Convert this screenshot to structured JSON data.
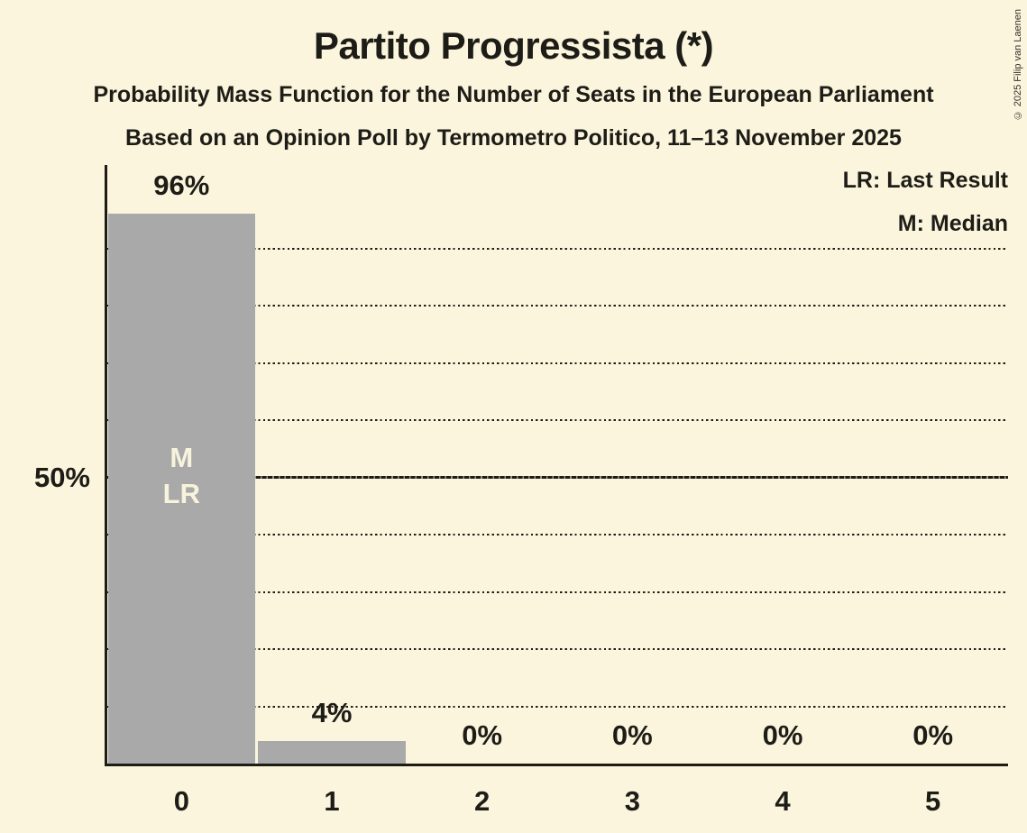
{
  "title": "Partito Progressista (*)",
  "subtitle1": "Probability Mass Function for the Number of Seats in the European Parliament",
  "subtitle2": "Based on an Opinion Poll by Termometro Politico, 11–13 November 2025",
  "legend": {
    "last_result": "LR: Last Result",
    "median": "M: Median"
  },
  "copyright": "© 2025 Filip van Laenen",
  "colors": {
    "background": "#faf5dc",
    "bar": "#a9a9a9",
    "text": "#1e1c17",
    "bar_annotation_text": "#f8f3dc"
  },
  "chart_data": {
    "type": "bar",
    "title": "Partito Progressista (*)",
    "categories": [
      "0",
      "1",
      "2",
      "3",
      "4",
      "5"
    ],
    "values": [
      96,
      4,
      0,
      0,
      0,
      0
    ],
    "value_labels": [
      "96%",
      "4%",
      "0%",
      "0%",
      "0%",
      "0%"
    ],
    "ylim": [
      0,
      100
    ],
    "ytick": {
      "value": 50,
      "label": "50%"
    },
    "gridlines_pct": [
      10,
      20,
      30,
      40,
      60,
      70,
      80,
      90
    ],
    "median_line_pct": 50,
    "grid_style": "dotted-horizontal",
    "legend_position": "top-right",
    "annotations": [
      {
        "bar_index": 0,
        "lines": [
          "M",
          "LR"
        ]
      }
    ]
  }
}
